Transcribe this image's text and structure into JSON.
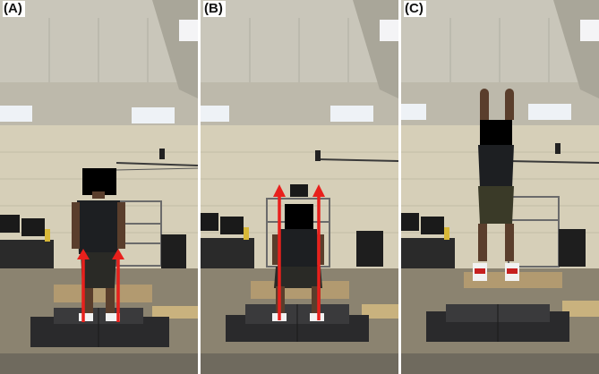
{
  "panels": [
    {
      "label": "(A)",
      "pose": "standing",
      "arrows": true
    },
    {
      "label": "(B)",
      "pose": "squat",
      "arrows": true
    },
    {
      "label": "(C)",
      "pose": "jump",
      "arrows": false
    }
  ],
  "colors": {
    "arrow": "#e8201c",
    "wall": "#d6cfb8",
    "ceiling": "#bcb8aa",
    "floor": "#8c8470",
    "mat": "#2a2a2c",
    "censor": "#000000"
  }
}
